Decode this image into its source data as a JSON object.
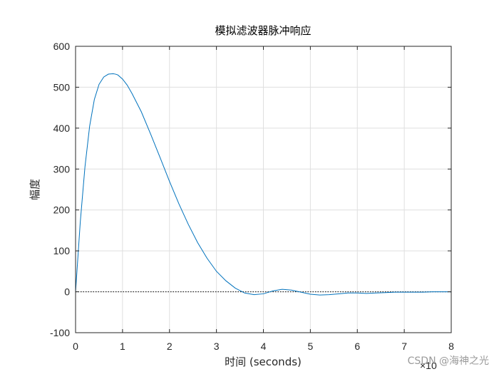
{
  "chart_data": {
    "type": "line",
    "title": "模拟滤波器脉冲响应",
    "xlabel": "时间 (seconds)",
    "ylabel": "幅度",
    "x_exponent_label": "×10",
    "xlim": [
      0,
      8
    ],
    "ylim": [
      -100,
      600
    ],
    "xticks": [
      0,
      1,
      2,
      3,
      4,
      5,
      6,
      7,
      8
    ],
    "yticks": [
      -100,
      0,
      100,
      200,
      300,
      400,
      500,
      600
    ],
    "grid": true,
    "zero_line": "dotted",
    "series": [
      {
        "color": "#0072bd",
        "x": [
          0,
          0.1,
          0.2,
          0.3,
          0.4,
          0.5,
          0.6,
          0.7,
          0.8,
          0.85,
          0.9,
          1.0,
          1.1,
          1.2,
          1.4,
          1.6,
          1.8,
          2.0,
          2.2,
          2.4,
          2.6,
          2.8,
          3.0,
          3.2,
          3.4,
          3.6,
          3.8,
          4.0,
          4.2,
          4.4,
          4.6,
          4.8,
          5.0,
          5.2,
          5.4,
          5.6,
          5.8,
          6.0,
          6.2,
          6.4,
          6.6,
          6.8,
          7.0,
          7.2,
          7.4,
          7.6,
          7.8,
          8.0
        ],
        "y": [
          0,
          170,
          305,
          405,
          470,
          507,
          525,
          532,
          533,
          532,
          530,
          520,
          505,
          485,
          440,
          385,
          328,
          270,
          215,
          165,
          120,
          82,
          50,
          27,
          9,
          -3,
          -7,
          -5,
          2,
          6,
          4,
          -1,
          -6,
          -8,
          -7,
          -5,
          -3,
          -3,
          -4,
          -3,
          -2,
          -1,
          -1,
          -1,
          -1,
          0,
          0,
          0
        ]
      }
    ]
  },
  "watermark": "CSDN @海神之光"
}
